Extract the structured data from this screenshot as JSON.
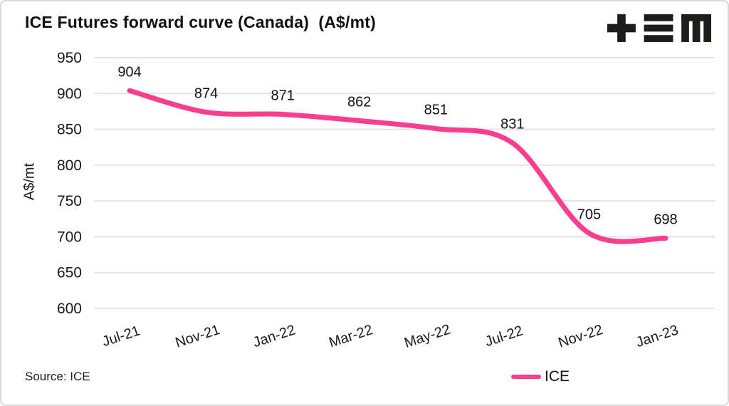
{
  "title": "ICE Futures forward curve (Canada)  (A$/mt)",
  "source": "Source: ICE",
  "chart_data": {
    "type": "line",
    "title": "ICE Futures forward curve (Canada)  (A$/mt)",
    "categories": [
      "Jul-21",
      "Nov-21",
      "Jan-22",
      "Mar-22",
      "May-22",
      "Jul-22",
      "Nov-22",
      "Jan-23"
    ],
    "series": [
      {
        "name": "ICE",
        "color": "#fa3d8f",
        "values": [
          904,
          874,
          871,
          862,
          851,
          831,
          705,
          698
        ]
      }
    ],
    "data_labels": true,
    "xlabel": "",
    "ylabel": "A$/mt",
    "yticks": [
      950,
      900,
      850,
      800,
      750,
      700,
      650,
      600
    ],
    "ylim": [
      600,
      950
    ],
    "grid": "horizontal",
    "legend_position": "bottom",
    "source": "Source: ICE"
  }
}
